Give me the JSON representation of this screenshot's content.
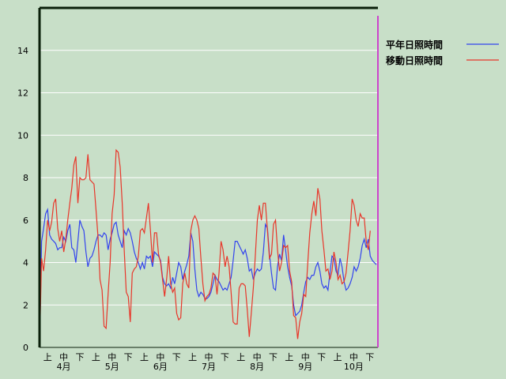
{
  "chart_data": {
    "type": "line",
    "title": "",
    "xlabel": "",
    "ylabel": "",
    "ylim": [
      0,
      16
    ],
    "yticks": [
      0,
      2,
      4,
      6,
      8,
      10,
      12,
      14
    ],
    "grid": "horizontal",
    "legend_position": "right",
    "x_dekad_labels": [
      "上",
      "中",
      "下",
      "上",
      "中",
      "下",
      "上",
      "中",
      "下",
      "上",
      "中",
      "下",
      "上",
      "中",
      "下",
      "上",
      "中",
      "下",
      "上",
      "中",
      "下"
    ],
    "month_labels": [
      "4月",
      "5月",
      "6月",
      "7月",
      "8月",
      "9月",
      "10月"
    ],
    "series": [
      {
        "name": "平年日照時間",
        "color": "#3344ee",
        "values": [
          0,
          5.0,
          5.6,
          6.3,
          6.5,
          5.3,
          5.1,
          5.0,
          4.9,
          4.6,
          4.7,
          4.7,
          5.2,
          5.0,
          5.5,
          5.8,
          4.7,
          4.6,
          4.0,
          5.0,
          6.0,
          5.7,
          5.5,
          4.5,
          3.8,
          4.2,
          4.3,
          4.6,
          5.0,
          5.3,
          5.3,
          5.2,
          5.4,
          5.3,
          4.6,
          5.1,
          5.4,
          5.8,
          5.9,
          5.3,
          5.0,
          4.7,
          5.5,
          5.3,
          5.6,
          5.4,
          5.0,
          4.5,
          4.2,
          4.0,
          3.7,
          4.0,
          3.7,
          4.3,
          4.2,
          4.3,
          3.8,
          4.5,
          4.4,
          4.3,
          4.1,
          3.3,
          3.0,
          2.9,
          3.0,
          2.8,
          3.3,
          3.0,
          3.5,
          4.0,
          3.8,
          3.2,
          3.6,
          3.9,
          4.3,
          5.4,
          5.0,
          3.7,
          2.7,
          2.4,
          2.6,
          2.5,
          2.3,
          2.3,
          2.4,
          2.6,
          3.0,
          3.4,
          3.2,
          3.1,
          2.9,
          2.7,
          2.8,
          2.7,
          3.0,
          3.3,
          4.1,
          5.0,
          5.0,
          4.8,
          4.6,
          4.4,
          4.6,
          4.2,
          3.6,
          3.7,
          3.2,
          3.5,
          3.7,
          3.6,
          3.7,
          4.5,
          5.8,
          5.6,
          4.4,
          3.5,
          2.8,
          2.7,
          3.8,
          4.4,
          4.1,
          5.3,
          4.6,
          3.8,
          3.3,
          2.9,
          2.0,
          1.5,
          1.6,
          1.7,
          2.0,
          2.6,
          3.1,
          3.3,
          3.2,
          3.4,
          3.4,
          3.8,
          4.0,
          3.6,
          3.0,
          2.8,
          2.9,
          2.7,
          3.5,
          4.3,
          4.2,
          3.6,
          3.4,
          4.2,
          3.8,
          3.1,
          2.7,
          2.8,
          3.0,
          3.3,
          3.8,
          3.6,
          3.8,
          4.2,
          4.8,
          5.1,
          4.7,
          5.1,
          4.3,
          4.1,
          4.0,
          3.9
        ]
      },
      {
        "name": "移動日照時間",
        "color": "#e8362a",
        "values": [
          0,
          4.2,
          3.6,
          4.6,
          6.0,
          5.5,
          5.9,
          6.8,
          7.0,
          5.6,
          5.0,
          5.5,
          4.5,
          5.1,
          6.0,
          6.8,
          7.5,
          8.6,
          9.0,
          6.8,
          8.0,
          7.9,
          7.9,
          8.0,
          9.1,
          7.9,
          7.8,
          7.7,
          6.5,
          5.2,
          3.2,
          2.7,
          1.0,
          0.9,
          2.5,
          4.0,
          6.3,
          7.2,
          9.3,
          9.2,
          8.5,
          6.8,
          4.6,
          2.6,
          2.4,
          1.2,
          3.5,
          3.7,
          3.8,
          4.3,
          5.5,
          5.6,
          5.4,
          6.1,
          6.8,
          5.5,
          4.0,
          5.4,
          5.4,
          4.4,
          4.0,
          3.2,
          2.4,
          3.2,
          4.3,
          3.0,
          2.6,
          2.8,
          1.6,
          1.3,
          1.4,
          3.0,
          3.5,
          3.0,
          2.8,
          5.5,
          6.0,
          6.2,
          6.0,
          5.6,
          4.2,
          3.0,
          2.2,
          2.4,
          2.5,
          2.8,
          3.5,
          3.4,
          2.5,
          3.5,
          5.0,
          4.6,
          3.8,
          4.3,
          3.8,
          2.6,
          1.2,
          1.1,
          1.1,
          2.8,
          3.0,
          3.0,
          2.9,
          1.8,
          0.5,
          1.6,
          2.8,
          4.3,
          6.0,
          6.7,
          6.0,
          6.8,
          6.8,
          5.5,
          4.2,
          4.4,
          5.8,
          6.0,
          4.6,
          3.6,
          4.0,
          4.8,
          4.7,
          4.8,
          3.6,
          3.1,
          1.5,
          1.4,
          0.4,
          1.2,
          1.6,
          2.5,
          2.4,
          4.0,
          5.4,
          6.3,
          6.9,
          6.2,
          7.5,
          7.0,
          5.5,
          4.6,
          3.6,
          3.7,
          3.2,
          3.6,
          4.5,
          4.0,
          3.2,
          3.4,
          3.0,
          3.1,
          3.5,
          4.5,
          5.5,
          7.0,
          6.7,
          6.0,
          5.7,
          6.3,
          6.1,
          6.1,
          5.0,
          4.6,
          5.5
        ]
      }
    ]
  }
}
